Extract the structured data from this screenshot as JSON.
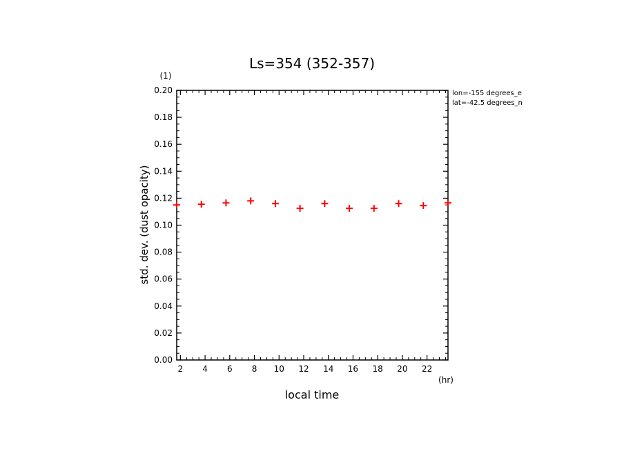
{
  "chart_data": {
    "type": "scatter",
    "title": "Ls=354 (352-357)",
    "xlabel": "local time",
    "x_unit": "(hr)",
    "ylabel": "std. dev. (dust opacity)",
    "y_unit": "(1)",
    "xlim": [
      1.7,
      23.7
    ],
    "ylim": [
      0.0,
      0.2
    ],
    "x_ticks": [
      2,
      4,
      6,
      8,
      10,
      12,
      14,
      16,
      18,
      20,
      22
    ],
    "y_ticks": [
      "0.00",
      "0.02",
      "0.04",
      "0.06",
      "0.08",
      "0.10",
      "0.12",
      "0.14",
      "0.16",
      "0.18",
      "0.20"
    ],
    "annotations": [
      "lon=-155 degrees_e",
      "lat=-42.5 degrees_n"
    ],
    "marker": "+",
    "color": "#ff0000",
    "points": [
      {
        "x": 1.7,
        "y": 0.115
      },
      {
        "x": 3.7,
        "y": 0.1155
      },
      {
        "x": 5.7,
        "y": 0.1165
      },
      {
        "x": 7.7,
        "y": 0.118
      },
      {
        "x": 9.7,
        "y": 0.116
      },
      {
        "x": 11.7,
        "y": 0.1125
      },
      {
        "x": 13.7,
        "y": 0.116
      },
      {
        "x": 15.7,
        "y": 0.1125
      },
      {
        "x": 17.7,
        "y": 0.1125
      },
      {
        "x": 19.7,
        "y": 0.116
      },
      {
        "x": 21.7,
        "y": 0.1145
      },
      {
        "x": 23.7,
        "y": 0.1165
      }
    ]
  }
}
